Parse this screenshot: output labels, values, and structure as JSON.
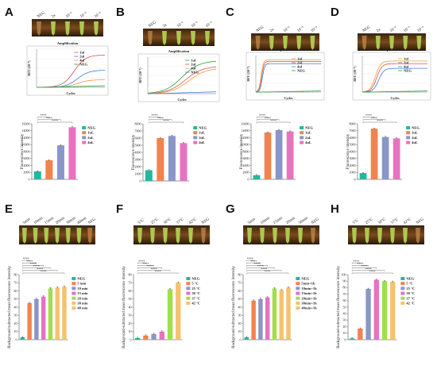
{
  "figure": {
    "colors": {
      "teal": "#23b89b",
      "orange": "#f0834f",
      "blue": "#8a96c8",
      "pink": "#e772c0",
      "green": "#9fe04a",
      "yellow": "#f5c26b",
      "neg": "#8fd08f",
      "amp_red": "#d9534f",
      "amp_orange": "#ee9a3a",
      "amp_blue": "#3f7fd6",
      "amp_green": "#2a9d3a"
    }
  },
  "panels": [
    {
      "letter": "A",
      "photo_labels": [
        "NEG",
        "2x",
        "10⁻²",
        "10⁻³",
        "10⁻⁴"
      ],
      "amplification": {
        "title": "Amplification",
        "ylabel": "RFU (10⁻³)",
        "xlabel": "Cycles",
        "legend": [
          "1ul",
          "2ul",
          "4ul",
          "NEG"
        ],
        "curves": [
          {
            "name": "1ul",
            "color": "amp_red",
            "plateau": 0.85,
            "mid": 0.55,
            "k": 3,
            "linear": true
          },
          {
            "name": "2ul",
            "color": "amp_blue",
            "plateau": 0.45,
            "mid": 0.6,
            "k": 3,
            "linear": true
          },
          {
            "name": "4ul",
            "color": "amp_orange",
            "plateau": 0.2,
            "mid": 0.6,
            "k": 3,
            "linear": true
          },
          {
            "name": "NEG",
            "color": "amp_green",
            "plateau": 0.04,
            "mid": 0.5,
            "k": 1,
            "linear": true
          }
        ]
      },
      "chart_data": {
        "type": "bar",
        "ylabel": "Fluorescence intensity",
        "ylim": [
          0,
          16000
        ],
        "yticks": [
          0,
          2000,
          4000,
          6000,
          8000,
          10000,
          12000,
          14000,
          16000
        ],
        "categories": [
          "NEG",
          "1uL",
          "2uL",
          "4uL"
        ],
        "values": [
          2300,
          5500,
          9800,
          15000
        ],
        "colors": [
          "teal",
          "orange",
          "blue",
          "pink"
        ],
        "legend": [
          "NEG",
          "1uL",
          "2uL",
          "4uL"
        ],
        "sig": [
          "****",
          "****",
          "****"
        ]
      }
    },
    {
      "letter": "B",
      "photo_labels": [
        "NEG",
        "2x",
        "10⁻²",
        "10⁻³",
        "10⁻⁴"
      ],
      "amplification": {
        "title": "Amplification",
        "ylabel": "RFU (10⁻³)",
        "xlabel": "Cycles",
        "legend": [
          "1ul",
          "2ul",
          "4ul",
          "NEG"
        ],
        "curves": [
          {
            "name": "1ul",
            "color": "amp_green",
            "plateau": 0.9,
            "mid": 0.5,
            "k": 2,
            "linear": true
          },
          {
            "name": "2ul",
            "color": "amp_red",
            "plateau": 0.75,
            "mid": 0.55,
            "k": 2,
            "linear": true
          },
          {
            "name": "4ul",
            "color": "amp_orange",
            "plateau": 0.7,
            "mid": 0.6,
            "k": 2,
            "linear": true
          },
          {
            "name": "NEG",
            "color": "amp_blue",
            "plateau": 0.05,
            "mid": 0.5,
            "k": 1,
            "linear": true
          }
        ]
      },
      "chart_data": {
        "type": "bar",
        "ylabel": "Fluorescence intensity",
        "ylim": [
          0,
          8000
        ],
        "yticks": [
          0,
          1000,
          2000,
          3000,
          4000,
          5000,
          6000,
          7000,
          8000
        ],
        "categories": [
          "NEG",
          "1uL",
          "2uL",
          "4uL"
        ],
        "values": [
          1500,
          6000,
          6300,
          5300
        ],
        "colors": [
          "teal",
          "orange",
          "blue",
          "pink"
        ],
        "legend": [
          "NEG",
          "1uL",
          "2uL",
          "4uL"
        ],
        "sig": [
          "****",
          "****",
          "****"
        ]
      }
    },
    {
      "letter": "C",
      "photo_labels": [
        "NEG",
        "2x",
        "10⁻²",
        "10⁻³",
        "10⁻⁴"
      ],
      "amplification": {
        "title": "Amplification",
        "ylabel": "RFU (10⁻³)",
        "xlabel": "Cycles",
        "legend": [
          "1ul",
          "2ul",
          "4ul",
          "NEG"
        ],
        "curves": [
          {
            "name": "1ul",
            "color": "amp_orange",
            "plateau": 0.88,
            "mid": 0.08,
            "k": 60,
            "linear": false
          },
          {
            "name": "2ul",
            "color": "amp_red",
            "plateau": 0.84,
            "mid": 0.09,
            "k": 60,
            "linear": false
          },
          {
            "name": "4ul",
            "color": "amp_blue",
            "plateau": 0.78,
            "mid": 0.1,
            "k": 60,
            "linear": false
          },
          {
            "name": "NEG",
            "color": "amp_green",
            "plateau": 0.03,
            "mid": 0.5,
            "k": 1,
            "linear": true
          }
        ]
      },
      "chart_data": {
        "type": "bar",
        "ylabel": "Fluorescence intensity",
        "ylim": [
          0,
          16000
        ],
        "yticks": [
          0,
          2000,
          4000,
          6000,
          8000,
          10000,
          12000,
          14000,
          16000
        ],
        "categories": [
          "NEG",
          "1uL",
          "2uL",
          "4uL"
        ],
        "values": [
          1200,
          13500,
          14200,
          13800
        ],
        "colors": [
          "teal",
          "orange",
          "blue",
          "pink"
        ],
        "legend": [
          "NEG",
          "1uL",
          "2uL",
          "4uL"
        ],
        "sig": [
          "****",
          "****",
          "****"
        ]
      }
    },
    {
      "letter": "D",
      "photo_labels": [
        "NEG",
        "2x",
        "10⁻²",
        "10⁻³",
        "10⁻⁴"
      ],
      "amplification": {
        "title": "Amplification",
        "ylabel": "RFU (10⁻³)",
        "xlabel": "Cycles",
        "legend": [
          "1ul",
          "2ul",
          "4ul",
          "NEG"
        ],
        "curves": [
          {
            "name": "1ul",
            "color": "amp_orange",
            "plateau": 0.85,
            "mid": 0.2,
            "k": 25,
            "linear": false
          },
          {
            "name": "2ul",
            "color": "amp_red",
            "plateau": 0.78,
            "mid": 0.22,
            "k": 25,
            "linear": false
          },
          {
            "name": "4ul",
            "color": "amp_blue",
            "plateau": 0.65,
            "mid": 0.25,
            "k": 25,
            "linear": false
          },
          {
            "name": "NEG",
            "color": "amp_green",
            "plateau": 0.03,
            "mid": 0.5,
            "k": 1,
            "linear": true
          }
        ]
      },
      "chart_data": {
        "type": "bar",
        "ylabel": "Fluorescence intensity",
        "ylim": [
          0,
          8000
        ],
        "yticks": [
          0,
          1000,
          2000,
          3000,
          4000,
          5000,
          6000,
          7000,
          8000
        ],
        "categories": [
          "NEG",
          "1uL",
          "2uL",
          "4uL"
        ],
        "values": [
          900,
          7300,
          6100,
          5900
        ],
        "colors": [
          "teal",
          "orange",
          "blue",
          "pink"
        ],
        "legend": [
          "NEG",
          "1uL",
          "2uL",
          "4uL"
        ],
        "sig": [
          "****",
          "****",
          "****"
        ]
      }
    },
    {
      "letter": "E",
      "photo_labels": [
        "5min",
        "10min",
        "15min",
        "20min",
        "30min",
        "40min",
        "NEG"
      ],
      "chart_data": {
        "type": "bar",
        "ylabel": "Background-subtracted mean fluorescence intensity",
        "ylim": [
          0,
          80
        ],
        "yticks": [
          0,
          10,
          20,
          30,
          40,
          50,
          60,
          70,
          80
        ],
        "categories": [
          "NEG",
          "5 min",
          "10 min",
          "15 min",
          "20 min",
          "30 min",
          "40 min"
        ],
        "values": [
          3,
          45,
          50,
          53,
          63,
          64,
          65
        ],
        "colors": [
          "teal",
          "orange",
          "blue",
          "pink",
          "green",
          "yellow",
          "yellow"
        ],
        "legend": [
          "NEG",
          "5 min",
          "10 min",
          "15 min",
          "20 min",
          "30 min",
          "40 min"
        ],
        "sig": [
          "****",
          "****",
          "****",
          "****",
          "****",
          "****"
        ]
      }
    },
    {
      "letter": "F",
      "photo_labels": [
        "5°C",
        "25°C",
        "30°C",
        "37°C",
        "42°C",
        "NEG"
      ],
      "chart_data": {
        "type": "bar",
        "ylabel": "Background-subtracted mean fluorescence intensity",
        "ylim": [
          0,
          80
        ],
        "yticks": [
          0,
          10,
          20,
          30,
          40,
          50,
          60,
          70,
          80
        ],
        "categories": [
          "NEG",
          "5 °C",
          "25 °C",
          "30 °C",
          "37 °C",
          "42 °C"
        ],
        "values": [
          2,
          5,
          7,
          10,
          62,
          70
        ],
        "colors": [
          "teal",
          "orange",
          "blue",
          "pink",
          "green",
          "yellow"
        ],
        "legend": [
          "NEG",
          "5 °C",
          "25 °C",
          "30 °C",
          "37 °C",
          "42 °C"
        ],
        "sig": [
          "****",
          "****",
          "****",
          "****",
          "****"
        ]
      }
    },
    {
      "letter": "G",
      "photo_labels": [
        "5min",
        "10min",
        "15min",
        "20min",
        "30min",
        "NEG"
      ],
      "chart_data": {
        "type": "bar",
        "ylabel": "Background-subtracted mean fluorescence intensity",
        "ylim": [
          0,
          80
        ],
        "yticks": [
          0,
          10,
          20,
          30,
          40,
          50,
          60,
          70,
          80
        ],
        "categories": [
          "NEG",
          "5min",
          "10min",
          "15min",
          "20min",
          "30min",
          "40min"
        ],
        "values": [
          3,
          48,
          50,
          52,
          63,
          61,
          64
        ],
        "colors": [
          "teal",
          "orange",
          "blue",
          "pink",
          "green",
          "yellow",
          "yellow"
        ],
        "legend": [
          "NEG",
          "5min+1h",
          "10min+1h",
          "15min+1h",
          "20min+1h",
          "30min+1h",
          "40min+1h"
        ],
        "sig": [
          "****",
          "****",
          "****",
          "****",
          "****",
          "****"
        ]
      }
    },
    {
      "letter": "H",
      "photo_labels": [
        "5°C",
        "25°C",
        "30°C",
        "37°C",
        "42°C",
        "NEG"
      ],
      "chart_data": {
        "type": "bar",
        "ylabel": "Background-subtracted mean fluorescence intensity",
        "ylim": [
          0,
          100
        ],
        "yticks": [
          0,
          10,
          20,
          30,
          40,
          50,
          60,
          70,
          80,
          90,
          100
        ],
        "categories": [
          "NEG",
          "5 °C",
          "25 °C",
          "30 °C",
          "37 °C",
          "42 °C"
        ],
        "values": [
          2,
          17,
          78,
          92,
          90,
          89
        ],
        "colors": [
          "teal",
          "orange",
          "blue",
          "pink",
          "green",
          "yellow"
        ],
        "legend": [
          "NEG",
          "5 °C",
          "25 °C",
          "30 °C",
          "37 °C",
          "42 °C"
        ],
        "sig": [
          "****",
          "****",
          "****",
          "****",
          "****"
        ]
      }
    }
  ]
}
